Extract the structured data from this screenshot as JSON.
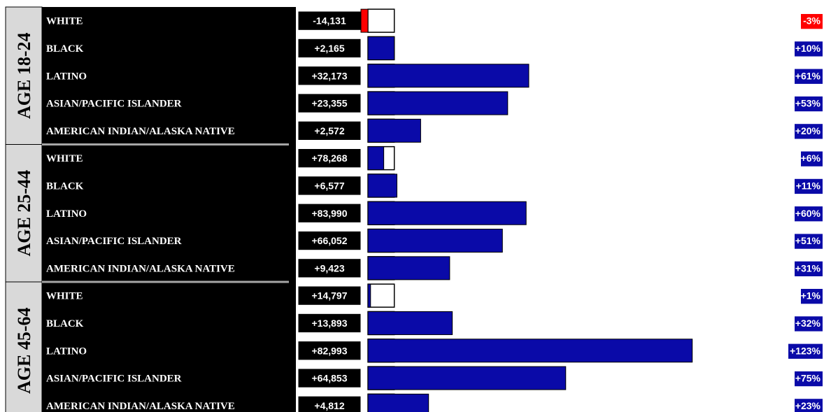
{
  "chart_data": {
    "type": "bar",
    "groups": [
      {
        "label": "AGE 18-24",
        "rows": [
          {
            "category": "WHITE",
            "change": "-14,131",
            "pct_label": "-3%",
            "pct": -3
          },
          {
            "category": "BLACK",
            "change": "+2,165",
            "pct_label": "+10%",
            "pct": 10
          },
          {
            "category": "LATINO",
            "change": "+32,173",
            "pct_label": "+61%",
            "pct": 61
          },
          {
            "category": "ASIAN/PACIFIC ISLANDER",
            "change": "+23,355",
            "pct_label": "+53%",
            "pct": 53
          },
          {
            "category": "AMERICAN INDIAN/ALASKA NATIVE",
            "change": "+2,572",
            "pct_label": "+20%",
            "pct": 20
          }
        ]
      },
      {
        "label": "AGE 25-44",
        "rows": [
          {
            "category": "WHITE",
            "change": "+78,268",
            "pct_label": "+6%",
            "pct": 6
          },
          {
            "category": "BLACK",
            "change": "+6,577",
            "pct_label": "+11%",
            "pct": 11
          },
          {
            "category": "LATINO",
            "change": "+83,990",
            "pct_label": "+60%",
            "pct": 60
          },
          {
            "category": "ASIAN/PACIFIC ISLANDER",
            "change": "+66,052",
            "pct_label": "+51%",
            "pct": 51
          },
          {
            "category": "AMERICAN INDIAN/ALASKA NATIVE",
            "change": "+9,423",
            "pct_label": "+31%",
            "pct": 31
          }
        ]
      },
      {
        "label": "AGE 45-64",
        "rows": [
          {
            "category": "WHITE",
            "change": "+14,797",
            "pct_label": "+1%",
            "pct": 1
          },
          {
            "category": "BLACK",
            "change": "+13,893",
            "pct_label": "+32%",
            "pct": 32
          },
          {
            "category": "LATINO",
            "change": "+82,993",
            "pct_label": "+123%",
            "pct": 123
          },
          {
            "category": "ASIAN/PACIFIC ISLANDER",
            "change": "+64,853",
            "pct_label": "+75%",
            "pct": 75
          },
          {
            "category": "AMERICAN INDIAN/ALASKA NATIVE",
            "change": "+4,812",
            "pct_label": "+23%",
            "pct": 23
          }
        ]
      }
    ],
    "reference_pct": 10,
    "colors": {
      "positive": "#0a0aa8",
      "negative": "#ff0000",
      "label_background": "#000000",
      "group_background": "#d9d9d9"
    }
  }
}
